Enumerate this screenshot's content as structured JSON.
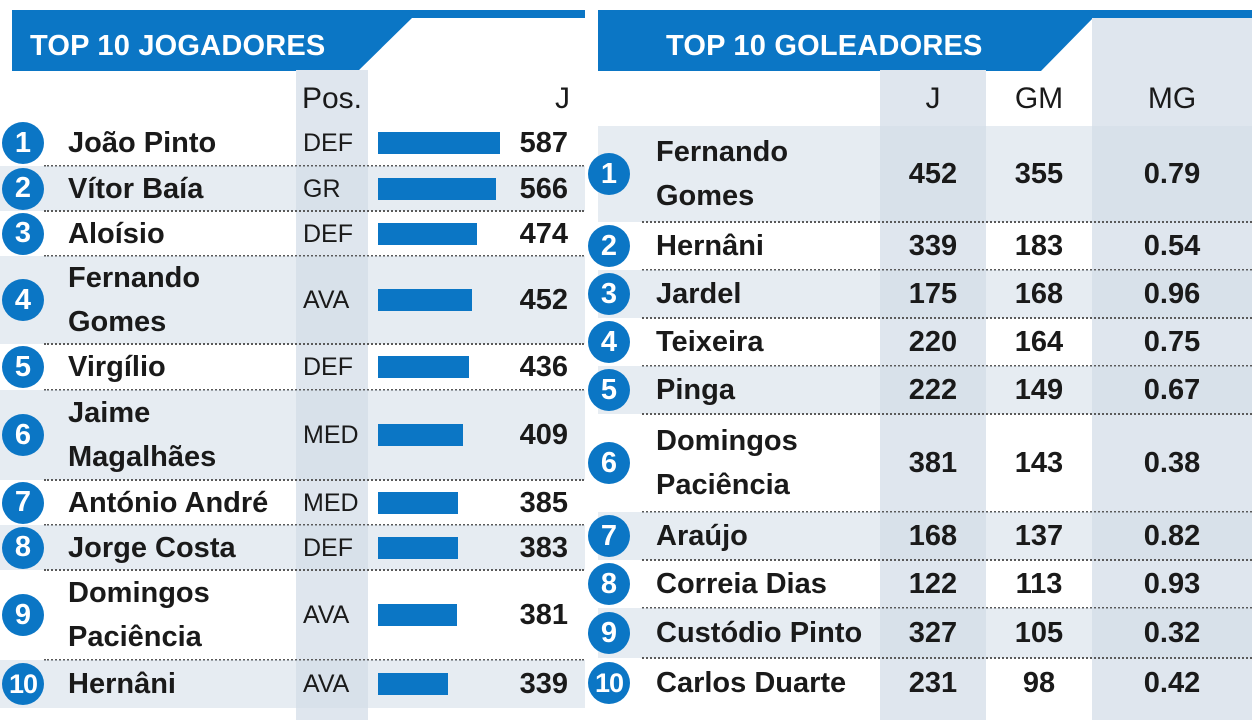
{
  "chart_data": [
    {
      "type": "bar",
      "title": "TOP 10 JOGADORES",
      "columns": [
        "Pos.",
        "J"
      ],
      "rows": [
        {
          "rank": "1",
          "name": [
            "João Pinto"
          ],
          "pos": "DEF",
          "j": 587
        },
        {
          "rank": "2",
          "name": [
            "Vítor Baía"
          ],
          "pos": "GR",
          "j": 566
        },
        {
          "rank": "3",
          "name": [
            "Aloísio"
          ],
          "pos": "DEF",
          "j": 474
        },
        {
          "rank": "4",
          "name": [
            "Fernando",
            "Gomes"
          ],
          "pos": "AVA",
          "j": 452
        },
        {
          "rank": "5",
          "name": [
            "Virgílio"
          ],
          "pos": "DEF",
          "j": 436
        },
        {
          "rank": "6",
          "name": [
            "Jaime",
            "Magalhães"
          ],
          "pos": "MED",
          "j": 409
        },
        {
          "rank": "7",
          "name": [
            "António André"
          ],
          "pos": "MED",
          "j": 385
        },
        {
          "rank": "8",
          "name": [
            "Jorge Costa"
          ],
          "pos": "DEF",
          "j": 383
        },
        {
          "rank": "9",
          "name": [
            "Domingos",
            "Paciência"
          ],
          "pos": "AVA",
          "j": 381
        },
        {
          "rank": "10",
          "name": [
            "Hernâni"
          ],
          "pos": "AVA",
          "j": 339
        }
      ]
    },
    {
      "type": "table",
      "title": "TOP 10 GOLEADORES",
      "columns": [
        "J",
        "GM",
        "MG"
      ],
      "rows": [
        {
          "rank": "1",
          "name": [
            "Fernando",
            "Gomes"
          ],
          "j": "452",
          "gm": "355",
          "mg": "0.79"
        },
        {
          "rank": "2",
          "name": [
            "Hernâni"
          ],
          "j": "339",
          "gm": "183",
          "mg": "0.54"
        },
        {
          "rank": "3",
          "name": [
            "Jardel"
          ],
          "j": "175",
          "gm": "168",
          "mg": "0.96"
        },
        {
          "rank": "4",
          "name": [
            "Teixeira"
          ],
          "j": "220",
          "gm": "164",
          "mg": "0.75"
        },
        {
          "rank": "5",
          "name": [
            "Pinga"
          ],
          "j": "222",
          "gm": "149",
          "mg": "0.67"
        },
        {
          "rank": "6",
          "name": [
            "Domingos",
            "Paciência"
          ],
          "j": "381",
          "gm": "143",
          "mg": "0.38"
        },
        {
          "rank": "7",
          "name": [
            "Araújo"
          ],
          "j": "168",
          "gm": "137",
          "mg": "0.82"
        },
        {
          "rank": "8",
          "name": [
            "Correia Dias"
          ],
          "j": "122",
          "gm": "113",
          "mg": "0.93"
        },
        {
          "rank": "9",
          "name": [
            "Custódio Pinto"
          ],
          "j": "327",
          "gm": "105",
          "mg": "0.32"
        },
        {
          "rank": "10",
          "name": [
            "Carlos Duarte"
          ],
          "j": "231",
          "gm": "98",
          "mg": "0.42"
        }
      ]
    }
  ],
  "colors": {
    "accent_blue": "#0b76c5",
    "column_shade": "#dfe6ee",
    "row_shade": "#d2dde8"
  }
}
